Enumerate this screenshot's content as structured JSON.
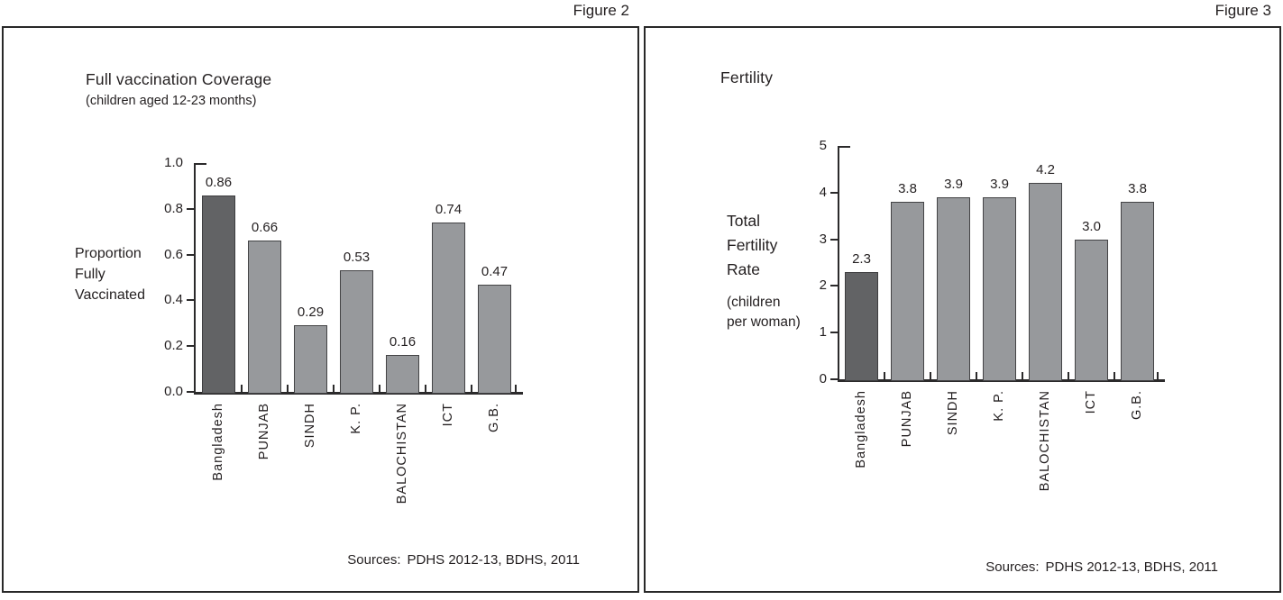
{
  "chart_data": [
    {
      "type": "bar",
      "figure_label": "Figure 2",
      "title": "Full vaccination Coverage",
      "subtitle": "(children aged 12-23 months)",
      "ylabel_lines": [
        "Proportion",
        "Fully",
        "Vaccinated"
      ],
      "categories": [
        "Bangladesh",
        "PUNJAB",
        "SINDH",
        "K. P.",
        "BALOCHISTAN",
        "ICT",
        "G.B."
      ],
      "values": [
        0.86,
        0.66,
        0.29,
        0.53,
        0.16,
        0.74,
        0.47
      ],
      "value_labels": [
        "0.86",
        "0.66",
        "0.29",
        "0.53",
        "0.16",
        "0.74",
        "0.47"
      ],
      "ylim": [
        0,
        1.0
      ],
      "yticks": [
        1.0,
        0.8,
        0.6,
        0.4,
        0.2,
        0.0
      ],
      "ytick_labels": [
        "1.0",
        "0.8",
        "0.6",
        "0.4",
        "0.2",
        "0.0"
      ],
      "highlight_index": 0,
      "grid": false,
      "legend": null,
      "sources_label": "Sources:",
      "sources_text": "PDHS 2012-13, BDHS, 2011",
      "colors": {
        "highlight_bar": "#626365",
        "bar": "#97999c",
        "bar_border": "#434345",
        "axis": "#2b2a2b",
        "text": "#231f20"
      }
    },
    {
      "type": "bar",
      "figure_label": "Figure 3",
      "title": "Fertility",
      "ylabel_lines": [
        "Total",
        "Fertility",
        "Rate"
      ],
      "ylabel_sub_lines": [
        "(children",
        "per woman)"
      ],
      "categories": [
        "Bangladesh",
        "PUNJAB",
        "SINDH",
        "K. P.",
        "BALOCHISTAN",
        "ICT",
        "G.B."
      ],
      "values": [
        2.3,
        3.8,
        3.9,
        3.9,
        4.2,
        3.0,
        3.8
      ],
      "value_labels": [
        "2.3",
        "3.8",
        "3.9",
        "3.9",
        "4.2",
        "3.0",
        "3.8"
      ],
      "ylim": [
        0,
        5
      ],
      "yticks": [
        5,
        4,
        3,
        2,
        1,
        0
      ],
      "ytick_labels": [
        "5",
        "4",
        "3",
        "2",
        "1",
        "0"
      ],
      "highlight_index": 0,
      "grid": false,
      "legend": null,
      "sources_label": "Sources:",
      "sources_text": "PDHS 2012-13, BDHS, 2011",
      "colors": {
        "highlight_bar": "#626365",
        "bar": "#97999c",
        "bar_border": "#434345",
        "axis": "#2b2a2b",
        "text": "#231f20"
      }
    }
  ]
}
